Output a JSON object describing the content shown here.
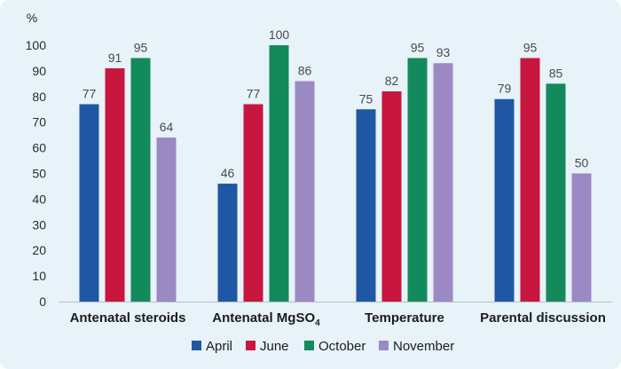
{
  "chart_data": {
    "type": "bar",
    "ylabel": "%",
    "ylim": [
      0,
      100
    ],
    "yticks": [
      "0",
      "10",
      "20",
      "30",
      "40",
      "50",
      "60",
      "70",
      "80",
      "90",
      "100"
    ],
    "categories": [
      "Antenatal steroids",
      "Antenatal MgSO",
      "Temperature",
      "Parental discussion"
    ],
    "category_subscript": [
      "",
      "4",
      "",
      ""
    ],
    "series": [
      {
        "name": "April",
        "color": "#1f57a4",
        "values": [
          77,
          46,
          75,
          79
        ]
      },
      {
        "name": "June",
        "color": "#c8173f",
        "values": [
          91,
          77,
          82,
          95
        ]
      },
      {
        "name": "October",
        "color": "#138a5c",
        "values": [
          95,
          100,
          95,
          85
        ]
      },
      {
        "name": "November",
        "color": "#9b89c4",
        "values": [
          64,
          86,
          93,
          50
        ]
      }
    ],
    "grid": false,
    "legend": "bottom"
  }
}
